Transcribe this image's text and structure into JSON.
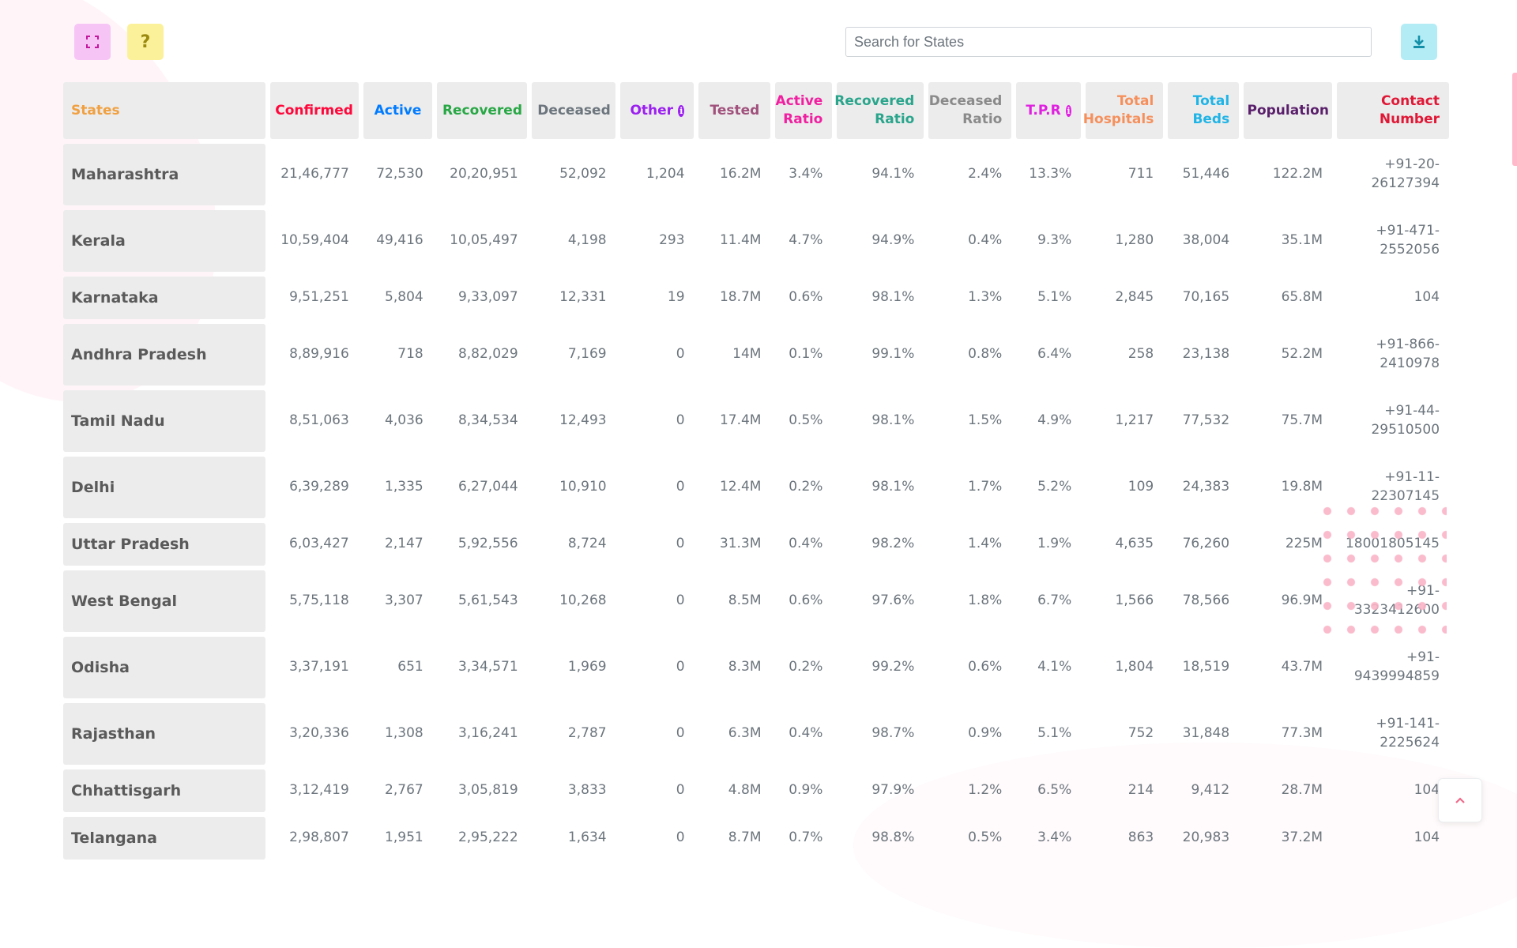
{
  "toolbar": {
    "fullscreen_icon": "fullscreen-icon",
    "help_label": "?",
    "download_icon": "download-icon",
    "search_placeholder": "Search for States"
  },
  "colors": {
    "fullscreen_bg": "#f6c4f5",
    "help_bg": "#fbf19a",
    "download_bg": "#b4ecf6",
    "header_bg": "#ececec"
  },
  "columns": [
    {
      "key": "state",
      "label": "States",
      "color": "#f0a040",
      "width": 256
    },
    {
      "key": "confirmed",
      "label": "Confirmed",
      "color": "#ff073a",
      "width": 112
    },
    {
      "key": "active",
      "label": "Active",
      "color": "#007bff",
      "width": 88
    },
    {
      "key": "recovered",
      "label": "Recovered",
      "color": "#28a745",
      "width": 114
    },
    {
      "key": "deceased",
      "label": "Deceased",
      "color": "#6c757d",
      "width": 106
    },
    {
      "key": "other",
      "label": "Other",
      "color": "#9b20f0",
      "width": 93,
      "info": true
    },
    {
      "key": "tested",
      "label": "Tested",
      "color": "#a0517c",
      "width": 91
    },
    {
      "key": "active_ratio",
      "label": "Active Ratio",
      "color": "#f020a0",
      "width": 72
    },
    {
      "key": "recovered_ratio",
      "label": "Recovered Ratio",
      "color": "#2aa58c",
      "width": 110
    },
    {
      "key": "deceased_ratio",
      "label": "Deceased Ratio",
      "color": "#8a8a8a",
      "width": 105
    },
    {
      "key": "tpr",
      "label": "T.P.R",
      "color": "#e020e0",
      "width": 82,
      "info": true
    },
    {
      "key": "total_hospitals",
      "label": "Total Hospitals",
      "color": "#f5905c",
      "width": 98
    },
    {
      "key": "total_beds",
      "label": "Total Beds",
      "color": "#20b4e6",
      "width": 90
    },
    {
      "key": "population",
      "label": "Population",
      "color": "#5a1f6b",
      "width": 112
    },
    {
      "key": "contact",
      "label": "Contact Number",
      "color": "#e01836",
      "width": 142
    }
  ],
  "rows": [
    {
      "name": "Maharashtra",
      "values": [
        "21,46,777",
        "72,530",
        "20,20,951",
        "52,092",
        "1,204",
        "16.2M",
        "3.4%",
        "94.1%",
        "2.4%",
        "13.3%",
        "711",
        "51,446",
        "122.2M",
        "+91-20-26127394"
      ]
    },
    {
      "name": "Kerala",
      "values": [
        "10,59,404",
        "49,416",
        "10,05,497",
        "4,198",
        "293",
        "11.4M",
        "4.7%",
        "94.9%",
        "0.4%",
        "9.3%",
        "1,280",
        "38,004",
        "35.1M",
        "+91-471-2552056"
      ]
    },
    {
      "name": "Karnataka",
      "values": [
        "9,51,251",
        "5,804",
        "9,33,097",
        "12,331",
        "19",
        "18.7M",
        "0.6%",
        "98.1%",
        "1.3%",
        "5.1%",
        "2,845",
        "70,165",
        "65.8M",
        "104"
      ]
    },
    {
      "name": "Andhra Pradesh",
      "values": [
        "8,89,916",
        "718",
        "8,82,029",
        "7,169",
        "0",
        "14M",
        "0.1%",
        "99.1%",
        "0.8%",
        "6.4%",
        "258",
        "23,138",
        "52.2M",
        "+91-866-2410978"
      ]
    },
    {
      "name": "Tamil Nadu",
      "values": [
        "8,51,063",
        "4,036",
        "8,34,534",
        "12,493",
        "0",
        "17.4M",
        "0.5%",
        "98.1%",
        "1.5%",
        "4.9%",
        "1,217",
        "77,532",
        "75.7M",
        "+91-44-29510500"
      ]
    },
    {
      "name": "Delhi",
      "values": [
        "6,39,289",
        "1,335",
        "6,27,044",
        "10,910",
        "0",
        "12.4M",
        "0.2%",
        "98.1%",
        "1.7%",
        "5.2%",
        "109",
        "24,383",
        "19.8M",
        "+91-11-22307145"
      ]
    },
    {
      "name": "Uttar Pradesh",
      "values": [
        "6,03,427",
        "2,147",
        "5,92,556",
        "8,724",
        "0",
        "31.3M",
        "0.4%",
        "98.2%",
        "1.4%",
        "1.9%",
        "4,635",
        "76,260",
        "225M",
        "18001805145"
      ]
    },
    {
      "name": "West Bengal",
      "values": [
        "5,75,118",
        "3,307",
        "5,61,543",
        "10,268",
        "0",
        "8.5M",
        "0.6%",
        "97.6%",
        "1.8%",
        "6.7%",
        "1,566",
        "78,566",
        "96.9M",
        "+91-3323412600"
      ]
    },
    {
      "name": "Odisha",
      "values": [
        "3,37,191",
        "651",
        "3,34,571",
        "1,969",
        "0",
        "8.3M",
        "0.2%",
        "99.2%",
        "0.6%",
        "4.1%",
        "1,804",
        "18,519",
        "43.7M",
        "+91-9439994859"
      ]
    },
    {
      "name": "Rajasthan",
      "values": [
        "3,20,336",
        "1,308",
        "3,16,241",
        "2,787",
        "0",
        "6.3M",
        "0.4%",
        "98.7%",
        "0.9%",
        "5.1%",
        "752",
        "31,848",
        "77.3M",
        "+91-141-2225624"
      ]
    },
    {
      "name": "Chhattisgarh",
      "values": [
        "3,12,419",
        "2,767",
        "3,05,819",
        "3,833",
        "0",
        "4.8M",
        "0.9%",
        "97.9%",
        "1.2%",
        "6.5%",
        "214",
        "9,412",
        "28.7M",
        "104"
      ]
    },
    {
      "name": "Telangana",
      "values": [
        "2,98,807",
        "1,951",
        "2,95,222",
        "1,634",
        "0",
        "8.7M",
        "0.7%",
        "98.8%",
        "0.5%",
        "3.4%",
        "863",
        "20,983",
        "37.2M",
        "104"
      ]
    }
  ]
}
